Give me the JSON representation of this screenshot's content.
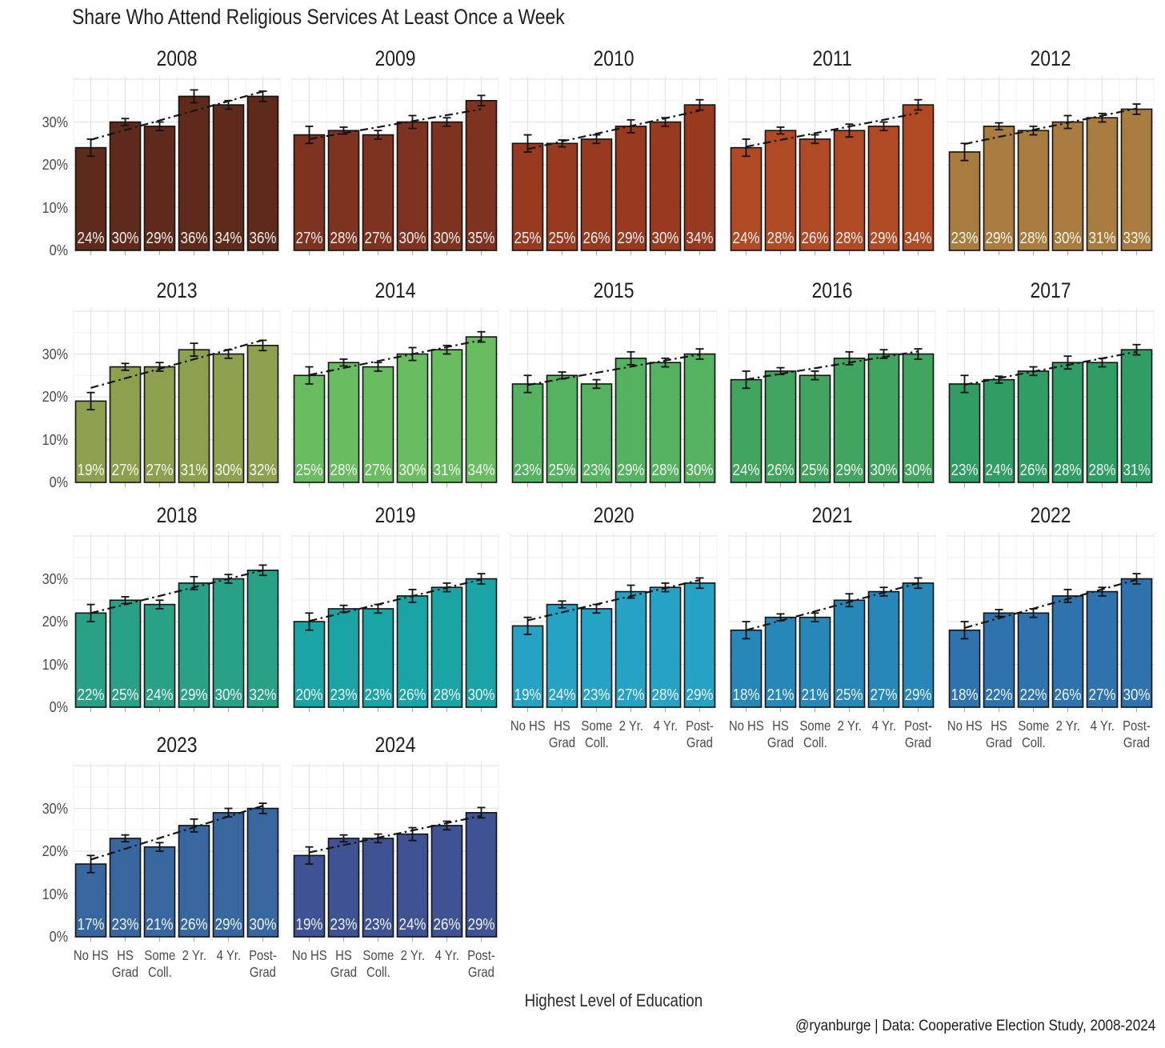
{
  "title": "Share Who Attend Religious Services At Least Once a Week",
  "caption": "@ryanburge | Data: Cooperative Election Study, 2008-2024",
  "chart_data": {
    "type": "bar",
    "title": "Share Who Attend Religious Services At Least Once a Week",
    "xlabel": "Highest Level of Education",
    "ylabel": "",
    "ylim": [
      0,
      40.75
    ],
    "grid": true,
    "legend": "none",
    "y_ticks": [
      {
        "value": 0,
        "label": "0%"
      },
      {
        "value": 10,
        "label": "10%"
      },
      {
        "value": 20,
        "label": "20%"
      },
      {
        "value": 30,
        "label": "30%"
      }
    ],
    "categories": [
      "No HS",
      "HS Grad",
      "Some Coll.",
      "2 Yr.",
      "4 Yr.",
      "Post-Grad"
    ],
    "category_tick_lines": [
      [
        "No HS"
      ],
      [
        "HS",
        "Grad"
      ],
      [
        "Some",
        "Coll."
      ],
      [
        "2 Yr."
      ],
      [
        "4 Yr."
      ],
      [
        "Post-",
        "Grad"
      ]
    ],
    "error_margins_pct": [
      2.0,
      0.8,
      1.0,
      1.5,
      1.0,
      1.2
    ],
    "trend_line_style": "dash-dot linear fit per facet",
    "bar_label_format": "NN%",
    "facets": [
      {
        "year": "2008",
        "color": "#5e2a1c",
        "values": [
          24,
          30,
          29,
          36,
          34,
          36
        ]
      },
      {
        "year": "2009",
        "color": "#7d331f",
        "values": [
          27,
          28,
          27,
          30,
          30,
          35
        ]
      },
      {
        "year": "2010",
        "color": "#973a20",
        "values": [
          25,
          25,
          26,
          29,
          30,
          34
        ]
      },
      {
        "year": "2011",
        "color": "#b04a24",
        "values": [
          24,
          28,
          26,
          28,
          29,
          34
        ]
      },
      {
        "year": "2012",
        "color": "#a87c3e",
        "values": [
          23,
          29,
          28,
          30,
          31,
          33
        ]
      },
      {
        "year": "2013",
        "color": "#8da04d",
        "values": [
          19,
          27,
          27,
          31,
          30,
          32
        ]
      },
      {
        "year": "2014",
        "color": "#6abc61",
        "values": [
          25,
          28,
          27,
          30,
          31,
          34
        ]
      },
      {
        "year": "2015",
        "color": "#55b260",
        "values": [
          23,
          25,
          23,
          29,
          28,
          30
        ]
      },
      {
        "year": "2016",
        "color": "#41a55f",
        "values": [
          24,
          26,
          25,
          29,
          30,
          30
        ]
      },
      {
        "year": "2017",
        "color": "#2f9d64",
        "values": [
          23,
          24,
          26,
          28,
          28,
          31
        ]
      },
      {
        "year": "2018",
        "color": "#29a186",
        "values": [
          22,
          25,
          24,
          29,
          30,
          32
        ]
      },
      {
        "year": "2019",
        "color": "#1ba4a6",
        "values": [
          20,
          23,
          23,
          26,
          28,
          30
        ]
      },
      {
        "year": "2020",
        "color": "#26a2c4",
        "values": [
          19,
          24,
          23,
          27,
          28,
          29
        ]
      },
      {
        "year": "2021",
        "color": "#2687b8",
        "values": [
          18,
          21,
          21,
          25,
          27,
          29
        ]
      },
      {
        "year": "2022",
        "color": "#2e73ae",
        "values": [
          18,
          22,
          22,
          26,
          27,
          30
        ]
      },
      {
        "year": "2023",
        "color": "#38669f",
        "values": [
          17,
          23,
          21,
          26,
          29,
          30
        ]
      },
      {
        "year": "2024",
        "color": "#3e5294",
        "values": [
          19,
          23,
          23,
          24,
          26,
          29
        ]
      }
    ]
  },
  "colors": {
    "background": "#ffffff",
    "grid_major": "#e3e3e3",
    "grid_minor": "#f0f0f0",
    "bar_outline": "#121212",
    "error_bar": "#121212",
    "trend_line": "#141414",
    "axis_text": "#4a4a4a",
    "title_text": "#1f1f1f",
    "bar_label_text": "#ffffff",
    "tick_mark": "#a8a8a8"
  }
}
